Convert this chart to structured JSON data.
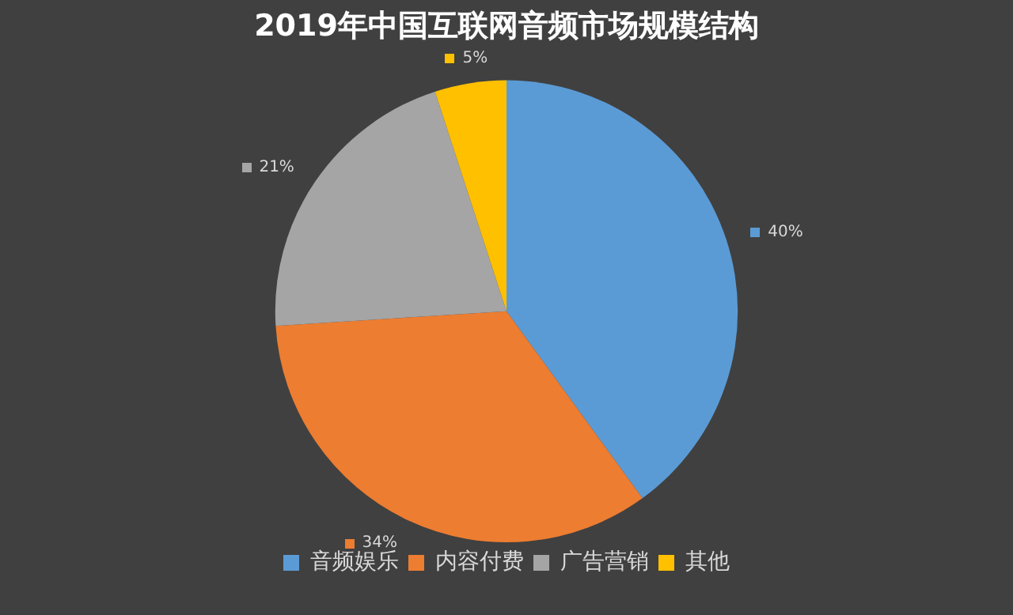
{
  "chart_data": {
    "type": "pie",
    "title": "2019年中国互联网音频市场规模结构",
    "categories": [
      "音频娱乐",
      "内容付费",
      "广告营销",
      "其他"
    ],
    "values": [
      40,
      34,
      21,
      5
    ],
    "colors": [
      "#5b9bd5",
      "#ed7d31",
      "#a5a5a5",
      "#ffc000"
    ],
    "value_labels": [
      "40%",
      "34%",
      "21%",
      "5%"
    ],
    "legend": "bottom"
  }
}
